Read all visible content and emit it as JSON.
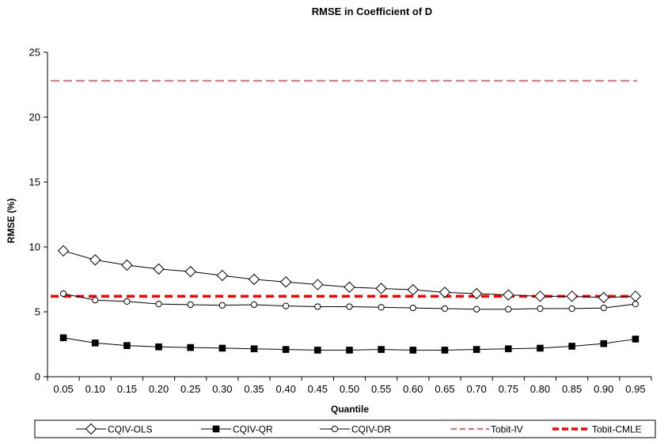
{
  "chart_data": {
    "type": "line",
    "title": "RMSE in Coefficient of D",
    "xlabel": "Quantile",
    "ylabel": "RMSE (%)",
    "ylim": [
      0,
      25
    ],
    "yticks": [
      "0",
      "5",
      "10",
      "15",
      "20",
      "25"
    ],
    "categories": [
      "0.05",
      "0.10",
      "0.15",
      "0.20",
      "0.25",
      "0.30",
      "0.35",
      "0.40",
      "0.45",
      "0.50",
      "0.55",
      "0.60",
      "0.65",
      "0.70",
      "0.75",
      "0.80",
      "0.85",
      "0.90",
      "0.95"
    ],
    "grid": false,
    "legend_position": "bottom",
    "series": [
      {
        "name": "CQIV-OLS",
        "marker": "diamond-open",
        "line": "solid",
        "color": "#000000",
        "values": [
          9.7,
          9.0,
          8.6,
          8.3,
          8.1,
          7.8,
          7.5,
          7.3,
          7.1,
          6.9,
          6.8,
          6.7,
          6.5,
          6.4,
          6.3,
          6.2,
          6.2,
          6.1,
          6.2
        ]
      },
      {
        "name": "CQIV-QR",
        "marker": "square-filled",
        "line": "solid",
        "color": "#000000",
        "values": [
          3.0,
          2.6,
          2.4,
          2.3,
          2.25,
          2.2,
          2.15,
          2.1,
          2.05,
          2.05,
          2.1,
          2.05,
          2.05,
          2.1,
          2.15,
          2.2,
          2.35,
          2.55,
          2.9
        ]
      },
      {
        "name": "CQIV-DR",
        "marker": "circle-open",
        "line": "solid",
        "color": "#000000",
        "values": [
          6.4,
          5.9,
          5.8,
          5.6,
          5.55,
          5.5,
          5.55,
          5.45,
          5.4,
          5.4,
          5.35,
          5.3,
          5.25,
          5.2,
          5.2,
          5.25,
          5.25,
          5.3,
          5.6
        ]
      },
      {
        "name": "Tobit-IV",
        "marker": "none",
        "line": "dashed",
        "color": "#ff0000",
        "values": [
          22.8,
          22.8,
          22.8,
          22.8,
          22.8,
          22.8,
          22.8,
          22.8,
          22.8,
          22.8,
          22.8,
          22.8,
          22.8,
          22.8,
          22.8,
          22.8,
          22.8,
          22.8,
          22.8
        ]
      },
      {
        "name": "Tobit-CMLE",
        "marker": "none",
        "line": "bold-dashed",
        "color": "#ff0000",
        "values": [
          6.2,
          6.2,
          6.2,
          6.2,
          6.2,
          6.2,
          6.2,
          6.2,
          6.2,
          6.2,
          6.2,
          6.2,
          6.2,
          6.2,
          6.2,
          6.2,
          6.2,
          6.2,
          6.2
        ]
      }
    ]
  }
}
